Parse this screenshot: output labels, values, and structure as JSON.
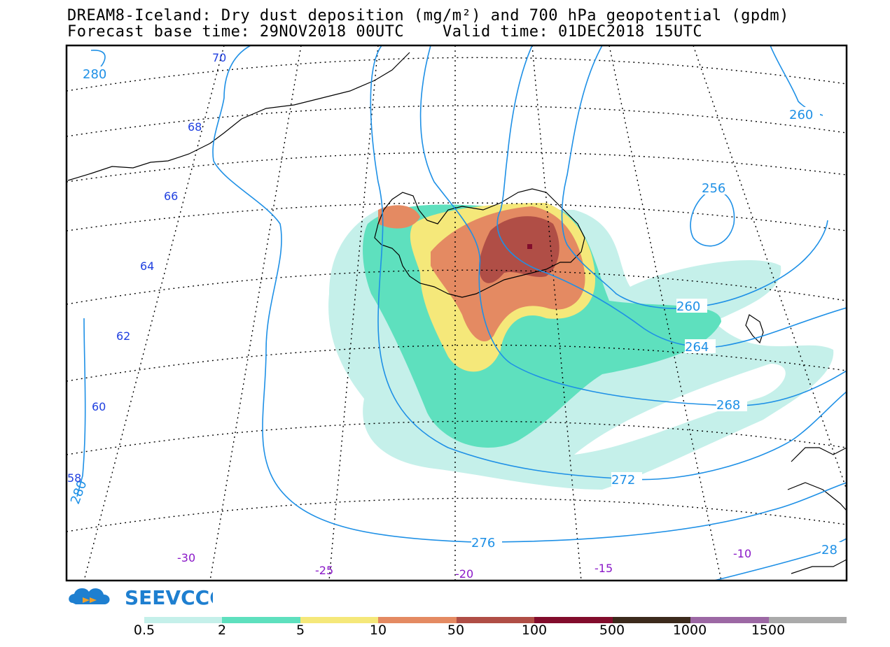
{
  "header": {
    "title_line1": "DREAM8-Iceland: Dry dust deposition (mg/m²) and 700 hPa geopotential (gpdm)",
    "title_line2": "Forecast base time: 29NOV2018 00UTC    Valid time: 01DEC2018 15UTC"
  },
  "map": {
    "region": "Iceland",
    "field": "Dry dust deposition (mg/m²)",
    "contour_field": "700 hPa geopotential (gpdm)",
    "contour_labels": [
      "280",
      "276",
      "272",
      "268",
      "264",
      "260",
      "256",
      "260",
      "280",
      "28"
    ],
    "latitude_labels": [
      "70",
      "68",
      "66",
      "64",
      "62",
      "60",
      "58"
    ],
    "longitude_labels": [
      "-30",
      "-25",
      "-20",
      "-15",
      "-10"
    ],
    "colors": {
      "contour": "#1e90e6",
      "lat_label": "#2040e0",
      "lon_label": "#8a18c8"
    }
  },
  "logo": {
    "text": "SEEVCCC"
  },
  "legend": {
    "labels": [
      "0.5",
      "2",
      "5",
      "10",
      "50",
      "100",
      "500",
      "1000",
      "1500"
    ],
    "colors": [
      "#c5f0ea",
      "#5ee0be",
      "#f5e87a",
      "#e48a62",
      "#b04e46",
      "#820c2c",
      "#3c2a1c",
      "#9c68a4",
      "#aaaaaa"
    ]
  }
}
